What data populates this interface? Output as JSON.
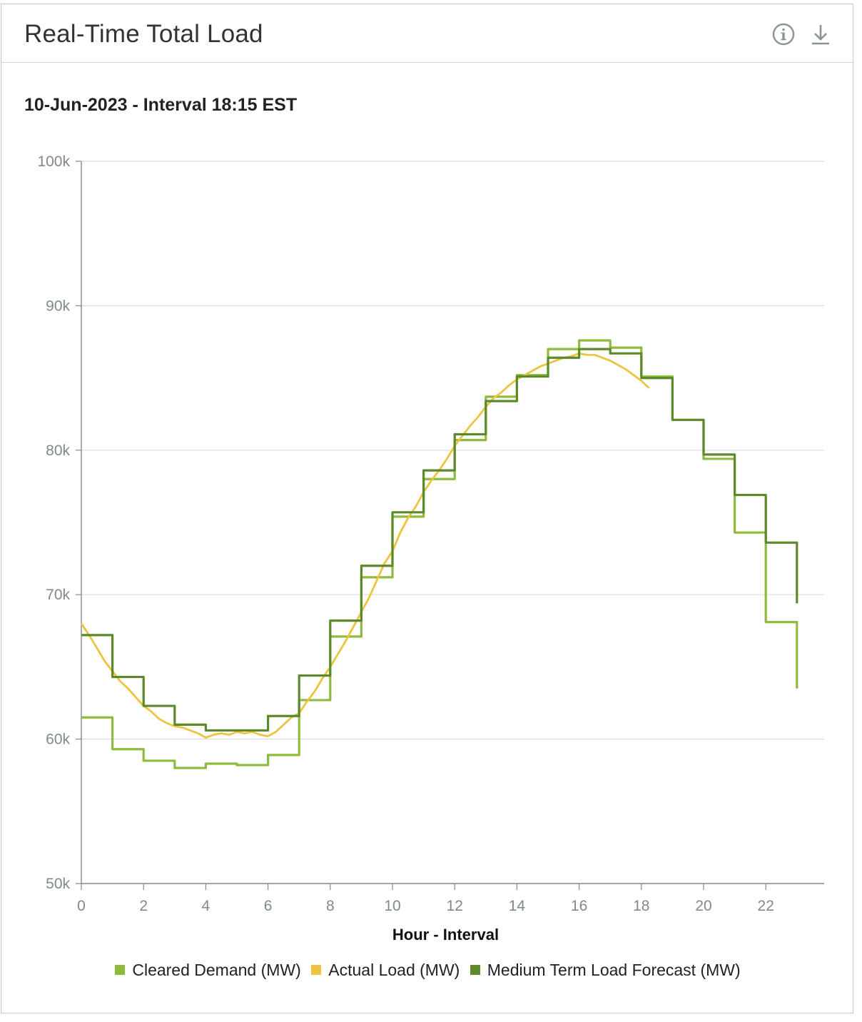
{
  "card": {
    "title": "Real-Time Total Load",
    "subtitle": "10-Jun-2023 - Interval 18:15 EST",
    "icons": [
      "info-icon",
      "download-icon"
    ]
  },
  "colors": {
    "cleared": "#8dbb3c",
    "actual": "#ecc43f",
    "forecast": "#5c8a2a",
    "grid": "#dcdcdc",
    "axis": "#808a8a"
  },
  "chart_data": {
    "type": "line",
    "title": "10-Jun-2023 - Interval 18:15 EST",
    "xlabel": "Hour - Interval",
    "ylabel": "",
    "xlim": [
      0,
      24
    ],
    "ylim": [
      50000,
      100000
    ],
    "x_ticks": [
      0,
      2,
      4,
      6,
      8,
      10,
      12,
      14,
      16,
      18,
      20,
      22
    ],
    "x_tick_labels": [
      "0",
      "2",
      "4",
      "6",
      "8",
      "10",
      "12",
      "14",
      "16",
      "18",
      "20",
      "22"
    ],
    "y_ticks": [
      50000,
      60000,
      70000,
      80000,
      90000,
      100000
    ],
    "y_tick_labels": [
      "50k",
      "60k",
      "70k",
      "80k",
      "90k",
      "100k"
    ],
    "grid": true,
    "legend_position": "bottom",
    "series": [
      {
        "name": "Cleared Demand (MW)",
        "style": "step",
        "x": [
          0,
          1,
          2,
          3,
          4,
          5,
          6,
          7,
          8,
          9,
          10,
          11,
          12,
          13,
          14,
          15,
          16,
          17,
          18,
          19,
          20,
          21,
          22,
          23
        ],
        "values": [
          61500,
          59300,
          58500,
          58000,
          58300,
          58200,
          58900,
          62700,
          67100,
          71200,
          75400,
          78000,
          80700,
          83700,
          85200,
          87000,
          87600,
          87100,
          85100,
          82100,
          79400,
          74300,
          68100,
          63500
        ]
      },
      {
        "name": "Actual Load (MW)",
        "style": "line",
        "x": [
          0,
          0.25,
          0.5,
          0.75,
          1,
          1.25,
          1.5,
          1.75,
          2,
          2.25,
          2.5,
          2.75,
          3,
          3.25,
          3.5,
          3.75,
          4,
          4.25,
          4.5,
          4.75,
          5,
          5.25,
          5.5,
          5.75,
          6,
          6.25,
          6.5,
          6.75,
          7,
          7.25,
          7.5,
          7.75,
          8,
          8.25,
          8.5,
          8.75,
          9,
          9.25,
          9.5,
          9.75,
          10,
          10.25,
          10.5,
          10.75,
          11,
          11.25,
          11.5,
          11.75,
          12,
          12.25,
          12.5,
          12.75,
          13,
          13.25,
          13.5,
          13.75,
          14,
          14.25,
          14.5,
          14.75,
          15,
          15.25,
          15.5,
          15.75,
          16,
          16.25,
          16.5,
          16.75,
          17,
          17.25,
          17.5,
          17.75,
          18,
          18.25
        ],
        "values": [
          68000,
          67200,
          66300,
          65400,
          64700,
          64000,
          63500,
          62900,
          62300,
          61900,
          61400,
          61100,
          60900,
          60800,
          60600,
          60400,
          60100,
          60300,
          60400,
          60300,
          60500,
          60400,
          60500,
          60300,
          60200,
          60500,
          61000,
          61500,
          61800,
          62600,
          63300,
          64200,
          65000,
          65900,
          66800,
          67800,
          68800,
          69800,
          71000,
          72200,
          73000,
          74300,
          75300,
          76100,
          77100,
          77900,
          78600,
          79400,
          80300,
          81000,
          81700,
          82300,
          83000,
          83600,
          84000,
          84500,
          84900,
          85200,
          85500,
          85800,
          86000,
          86200,
          86400,
          86500,
          86700,
          86600,
          86600,
          86400,
          86200,
          85900,
          85600,
          85200,
          84800,
          84300
        ]
      },
      {
        "name": "Medium Term Load Forecast (MW)",
        "style": "step",
        "x": [
          0,
          1,
          2,
          3,
          4,
          5,
          6,
          7,
          8,
          9,
          10,
          11,
          12,
          13,
          14,
          15,
          16,
          17,
          18,
          19,
          20,
          21,
          22,
          23
        ],
        "values": [
          67200,
          64300,
          62300,
          61000,
          60600,
          60600,
          61600,
          64400,
          68200,
          72000,
          75700,
          78600,
          81100,
          83400,
          85100,
          86400,
          87000,
          86700,
          85000,
          82100,
          79700,
          76900,
          73600,
          69400
        ]
      }
    ]
  }
}
